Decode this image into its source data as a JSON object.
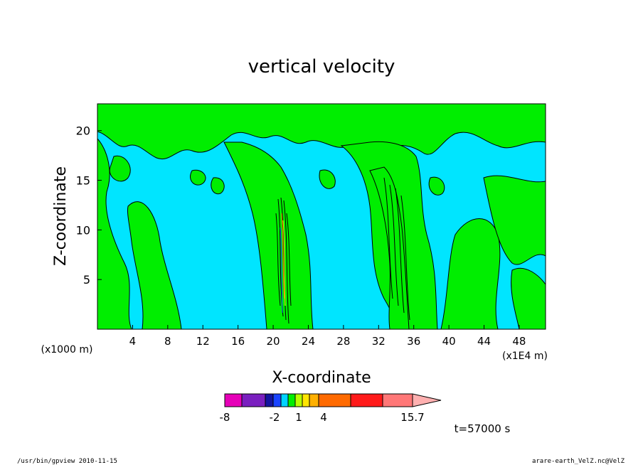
{
  "chart_data": {
    "type": "heatmap",
    "title": "vertical velocity",
    "xlabel": "X-coordinate",
    "ylabel": "Z-coordinate",
    "x_unit_left": "(x1000 m)",
    "x_unit_right": "(x1E4 m)",
    "x_ticks": [
      "4",
      "8",
      "12",
      "16",
      "20",
      "24",
      "28",
      "32",
      "36",
      "40",
      "44",
      "48"
    ],
    "y_ticks": [
      "5",
      "10",
      "15",
      "20"
    ],
    "xlim": [
      0,
      51
    ],
    "ylim": [
      0,
      22.7
    ],
    "field_colors": {
      "low": "#00e5ff",
      "high": "#00ee00",
      "contour": "#000000"
    },
    "colorbar": {
      "colors": [
        "#e600b8",
        "#7a1fbf",
        "#1414a0",
        "#1a44ff",
        "#00d2ff",
        "#00ee00",
        "#b8ff00",
        "#ffe500",
        "#ffb000",
        "#ff6a00",
        "#ff1a1a",
        "#ff7777",
        "#ffb0b0"
      ],
      "labels": [
        "-8",
        "-2",
        "1",
        "4",
        "15.7"
      ],
      "label_positions_index": [
        0,
        3,
        5,
        7,
        12
      ]
    },
    "time_label": "t=57000 s"
  },
  "footer": {
    "left": "/usr/bin/gpview   2010-11-15",
    "right": "arare-earth_VelZ.nc@VelZ"
  }
}
